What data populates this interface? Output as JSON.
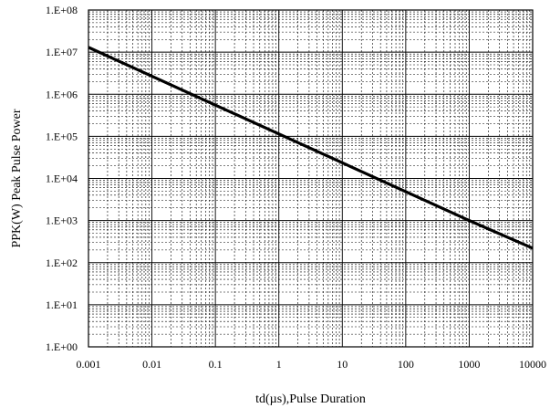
{
  "chart_data": {
    "type": "line",
    "title": "",
    "xlabel": "td(µs),Pulse Duration",
    "ylabel": "PPK(W) Peak Pulse Power",
    "x_scale": "log",
    "y_scale": "log",
    "xlim": [
      0.001,
      10000
    ],
    "ylim": [
      1,
      100000000
    ],
    "x_ticks": [
      0.001,
      0.01,
      0.1,
      1,
      10,
      100,
      1000,
      10000
    ],
    "x_tick_labels": [
      "0.001",
      "0.01",
      "0.1",
      "1",
      "10",
      "100",
      "1000",
      "10000"
    ],
    "y_ticks": [
      1,
      10,
      100,
      1000,
      10000,
      100000,
      1000000,
      10000000,
      100000000
    ],
    "y_tick_labels": [
      "1.E+00",
      "1.E+01",
      "1.E+02",
      "1.E+03",
      "1.E+04",
      "1.E+05",
      "1.E+06",
      "1.E+07",
      "1.E+08"
    ],
    "grid": true,
    "minor_grid": true,
    "legend": "none",
    "series": [
      {
        "x": [
          0.001,
          1000,
          10000
        ],
        "y": [
          13000000,
          1000,
          220
        ],
        "color": "#000000"
      }
    ]
  }
}
